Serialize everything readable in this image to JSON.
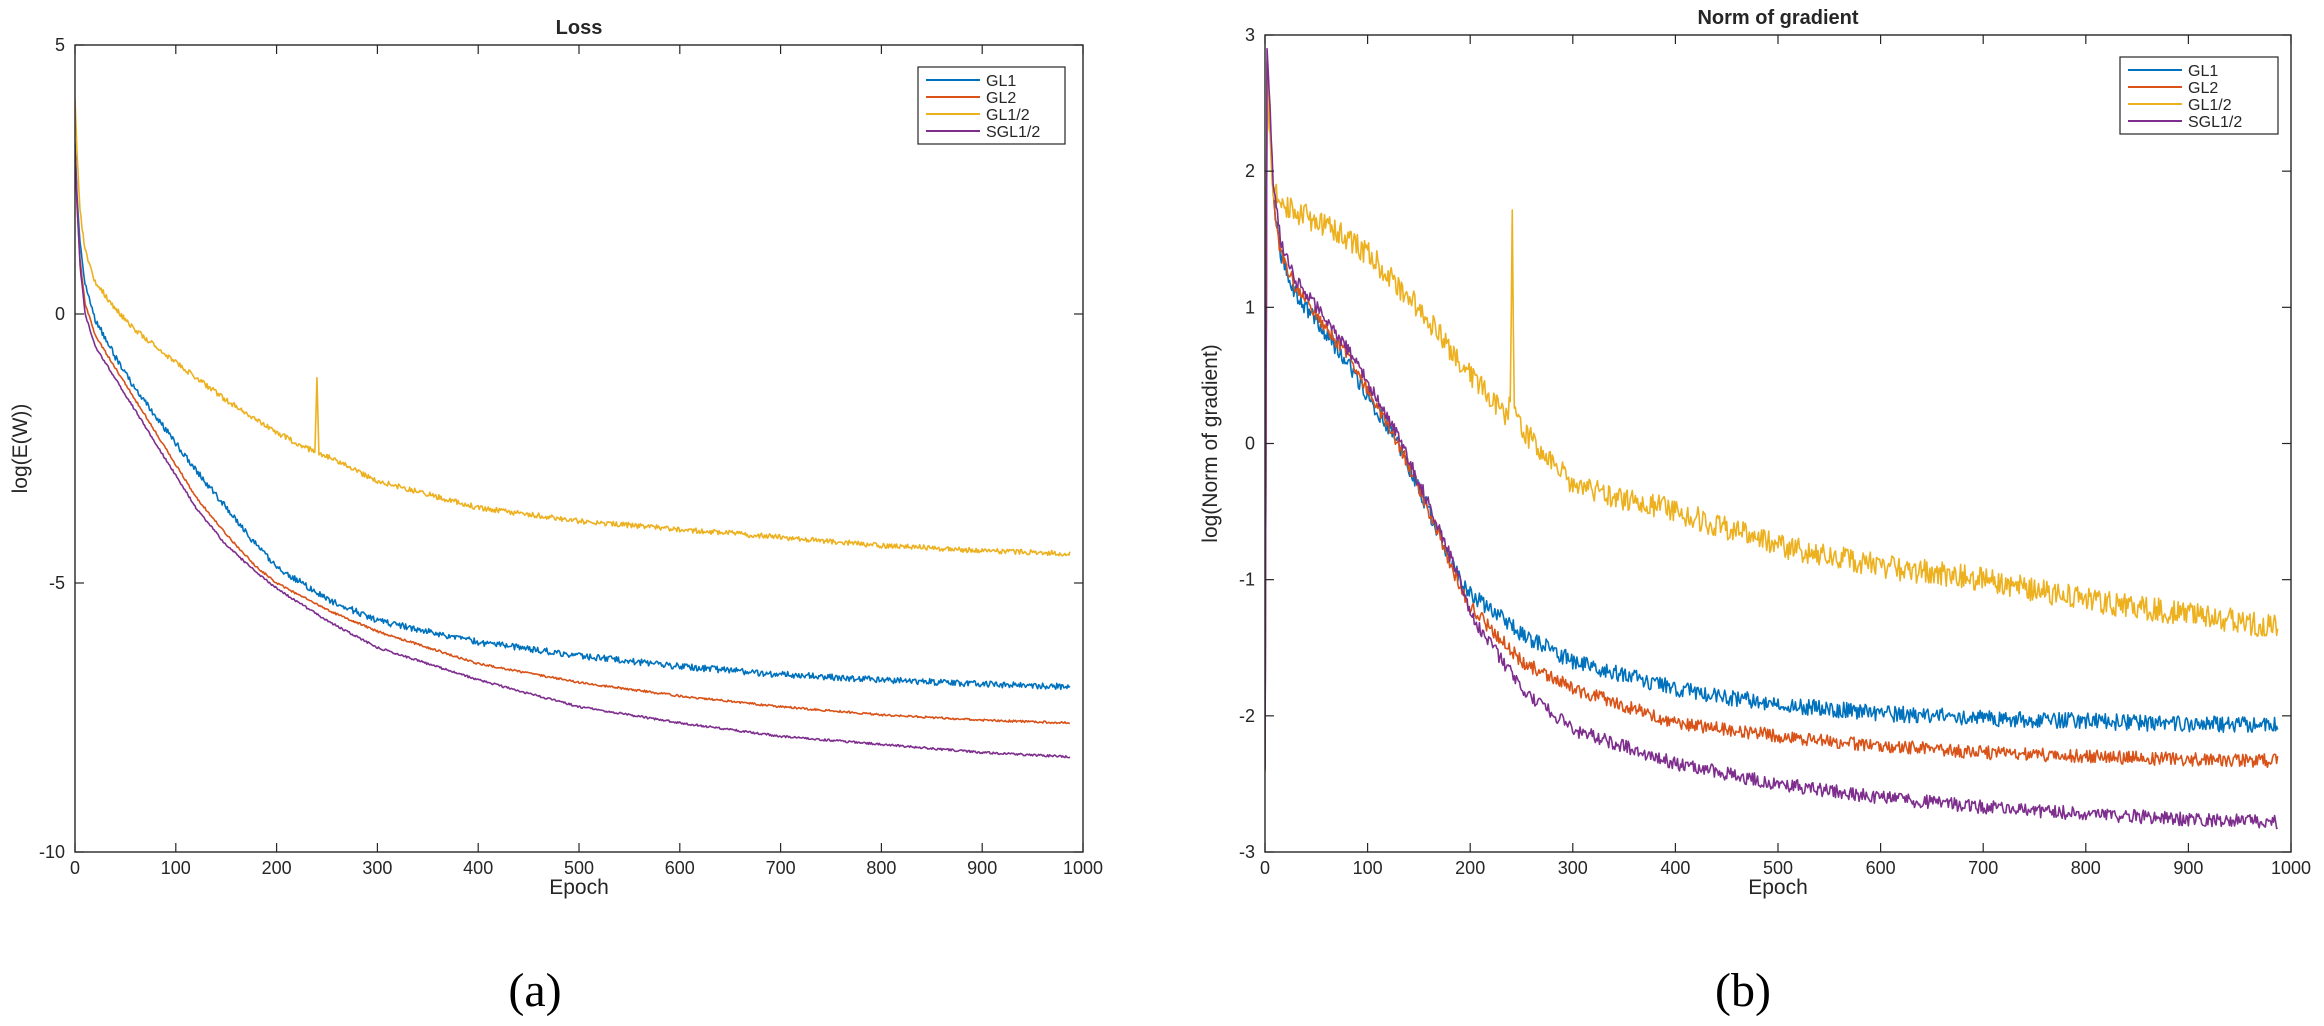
{
  "figure": {
    "panel_labels": [
      "(a)",
      "(b)"
    ]
  },
  "chart_data": [
    {
      "type": "line",
      "title": "Loss",
      "xlabel": "Epoch",
      "ylabel": "log(E(W))",
      "xlim": [
        0,
        1000
      ],
      "ylim": [
        -10,
        5
      ],
      "xticks": [
        0,
        100,
        200,
        300,
        400,
        500,
        600,
        700,
        800,
        900,
        1000
      ],
      "yticks": [
        -10,
        -5,
        0,
        5
      ],
      "grid": false,
      "legend_position": "top-right",
      "series": [
        {
          "name": "GL1",
          "color": "#0072BD",
          "noise": 0.06,
          "x": [
            0,
            2,
            5,
            10,
            20,
            40,
            60,
            80,
            100,
            120,
            150,
            180,
            200,
            250,
            300,
            400,
            500,
            600,
            700,
            800,
            900,
            987
          ],
          "y": [
            3.2,
            2.2,
            1.3,
            0.6,
            -0.1,
            -0.8,
            -1.4,
            -1.9,
            -2.4,
            -2.9,
            -3.6,
            -4.3,
            -4.7,
            -5.3,
            -5.7,
            -6.1,
            -6.35,
            -6.55,
            -6.7,
            -6.8,
            -6.88,
            -6.93
          ]
        },
        {
          "name": "GL2",
          "color": "#D95319",
          "noise": 0.02,
          "x": [
            0,
            2,
            5,
            10,
            20,
            40,
            60,
            80,
            100,
            120,
            150,
            180,
            200,
            250,
            300,
            400,
            500,
            600,
            700,
            800,
            900,
            987
          ],
          "y": [
            3.0,
            2.0,
            1.0,
            0.2,
            -0.4,
            -1.0,
            -1.6,
            -2.2,
            -2.8,
            -3.4,
            -4.1,
            -4.7,
            -5.0,
            -5.5,
            -5.9,
            -6.5,
            -6.85,
            -7.1,
            -7.3,
            -7.45,
            -7.55,
            -7.6
          ]
        },
        {
          "name": "GL1/2",
          "color": "#EDB120",
          "noise": 0.05,
          "x": [
            0,
            2,
            5,
            10,
            20,
            40,
            60,
            100,
            150,
            200,
            230,
            238,
            240,
            242,
            250,
            300,
            400,
            500,
            600,
            700,
            800,
            900,
            987
          ],
          "y": [
            4.0,
            3.0,
            1.9,
            1.2,
            0.6,
            0.1,
            -0.3,
            -0.9,
            -1.6,
            -2.2,
            -2.5,
            -2.55,
            -1.2,
            -2.6,
            -2.65,
            -3.1,
            -3.6,
            -3.85,
            -4.0,
            -4.15,
            -4.3,
            -4.4,
            -4.45
          ]
        },
        {
          "name": "SGL1/2",
          "color": "#7E2F8E",
          "noise": 0.02,
          "x": [
            0,
            2,
            5,
            10,
            20,
            40,
            60,
            80,
            100,
            120,
            150,
            180,
            200,
            250,
            300,
            400,
            500,
            600,
            700,
            800,
            900,
            987
          ],
          "y": [
            3.1,
            2.1,
            0.9,
            0.0,
            -0.6,
            -1.2,
            -1.8,
            -2.4,
            -3.0,
            -3.6,
            -4.3,
            -4.8,
            -5.1,
            -5.7,
            -6.2,
            -6.8,
            -7.3,
            -7.6,
            -7.85,
            -8.0,
            -8.15,
            -8.23
          ]
        }
      ]
    },
    {
      "type": "line",
      "title": "Norm of gradient",
      "xlabel": "Epoch",
      "ylabel": "log(Norm of gradient)",
      "xlim": [
        0,
        1000
      ],
      "ylim": [
        -3,
        3
      ],
      "xticks": [
        0,
        100,
        200,
        300,
        400,
        500,
        600,
        700,
        800,
        900,
        1000
      ],
      "yticks": [
        -3,
        -2,
        -1,
        0,
        1,
        2,
        3
      ],
      "grid": false,
      "legend_position": "top-right",
      "series": [
        {
          "name": "GL1",
          "color": "#0072BD",
          "noise": 0.06,
          "x": [
            0,
            2,
            4,
            8,
            15,
            30,
            50,
            80,
            100,
            130,
            160,
            190,
            200,
            250,
            300,
            400,
            500,
            600,
            700,
            800,
            900,
            987
          ],
          "y": [
            -2.4,
            2.8,
            2.5,
            1.8,
            1.4,
            1.1,
            0.9,
            0.6,
            0.35,
            0.0,
            -0.5,
            -1.0,
            -1.1,
            -1.4,
            -1.6,
            -1.8,
            -1.92,
            -1.98,
            -2.02,
            -2.04,
            -2.06,
            -2.07
          ]
        },
        {
          "name": "GL2",
          "color": "#D95319",
          "noise": 0.05,
          "x": [
            0,
            2,
            4,
            8,
            15,
            30,
            50,
            80,
            100,
            130,
            160,
            190,
            200,
            250,
            300,
            400,
            500,
            600,
            700,
            800,
            900,
            987
          ],
          "y": [
            -2.4,
            2.8,
            2.5,
            1.8,
            1.4,
            1.15,
            0.95,
            0.65,
            0.4,
            0.0,
            -0.5,
            -1.05,
            -1.2,
            -1.6,
            -1.8,
            -2.05,
            -2.15,
            -2.22,
            -2.27,
            -2.3,
            -2.32,
            -2.33
          ]
        },
        {
          "name": "GL1/2",
          "color": "#EDB120",
          "noise": 0.09,
          "x": [
            0,
            2,
            4,
            8,
            15,
            30,
            60,
            100,
            150,
            200,
            235,
            239,
            241,
            243,
            250,
            300,
            400,
            500,
            600,
            700,
            800,
            900,
            987
          ],
          "y": [
            -2.4,
            2.8,
            2.3,
            1.9,
            1.75,
            1.7,
            1.6,
            1.4,
            1.0,
            0.5,
            0.2,
            0.3,
            1.7,
            0.2,
            0.1,
            -0.3,
            -0.5,
            -0.75,
            -0.9,
            -1.0,
            -1.15,
            -1.25,
            -1.35
          ]
        },
        {
          "name": "SGL1/2",
          "color": "#7E2F8E",
          "noise": 0.05,
          "x": [
            0,
            2,
            4,
            8,
            15,
            30,
            50,
            80,
            100,
            130,
            160,
            190,
            200,
            250,
            300,
            400,
            500,
            600,
            700,
            800,
            900,
            987
          ],
          "y": [
            -2.4,
            2.9,
            2.6,
            1.9,
            1.5,
            1.2,
            1.0,
            0.7,
            0.45,
            0.05,
            -0.45,
            -1.0,
            -1.25,
            -1.8,
            -2.1,
            -2.35,
            -2.5,
            -2.6,
            -2.67,
            -2.72,
            -2.76,
            -2.78
          ]
        }
      ]
    }
  ]
}
